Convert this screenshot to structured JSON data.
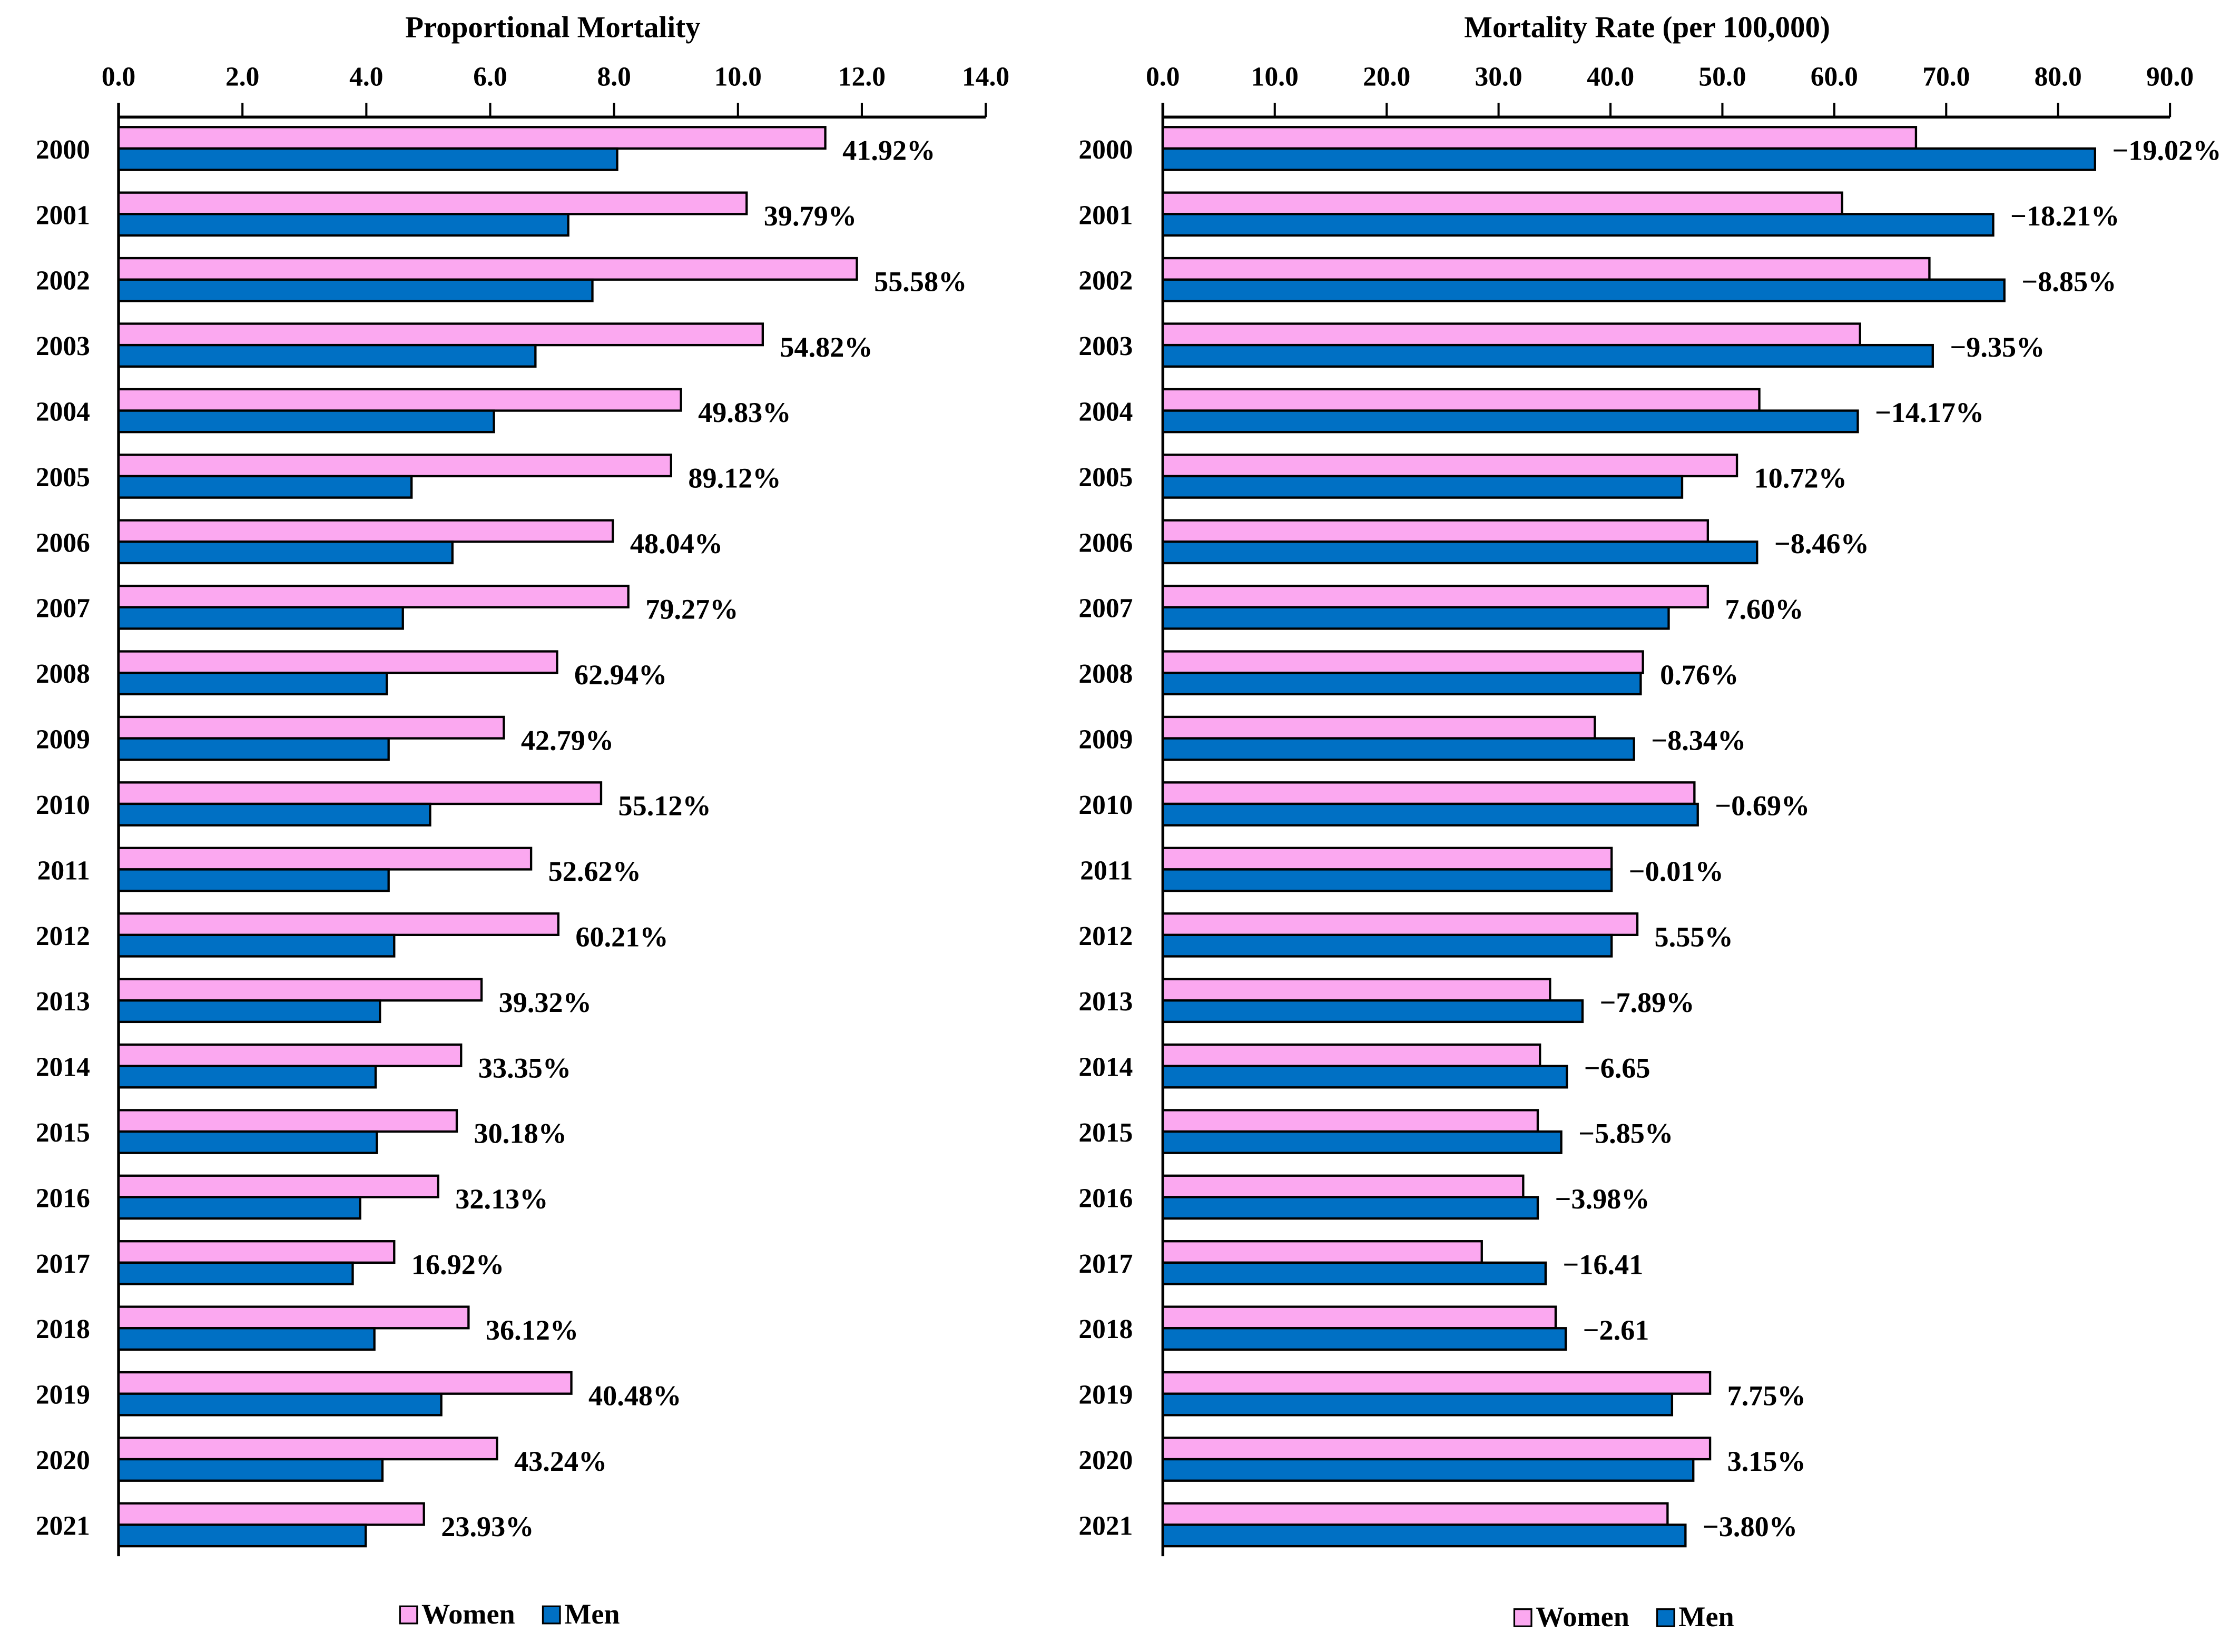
{
  "chart_data": [
    {
      "type": "bar",
      "orientation": "horizontal",
      "title": "Proportional Mortality",
      "xlim": [
        0,
        14
      ],
      "ticks": [
        "0.0",
        "2.0",
        "4.0",
        "6.0",
        "8.0",
        "10.0",
        "12.0",
        "14.0"
      ],
      "categories": [
        "2000",
        "2001",
        "2002",
        "2003",
        "2004",
        "2005",
        "2006",
        "2007",
        "2008",
        "2009",
        "2010",
        "2011",
        "2012",
        "2013",
        "2014",
        "2015",
        "2016",
        "2017",
        "2018",
        "2019",
        "2020",
        "2021"
      ],
      "series": [
        {
          "name": "Women",
          "color": "#fba8f0",
          "values": [
            11.41,
            10.14,
            11.92,
            10.4,
            9.08,
            8.92,
            7.98,
            8.23,
            7.08,
            6.22,
            7.79,
            6.66,
            7.1,
            5.86,
            5.53,
            5.46,
            5.16,
            4.45,
            5.65,
            7.31,
            6.11,
            4.93
          ]
        },
        {
          "name": "Men",
          "color": "#0070c4",
          "values": [
            8.05,
            7.26,
            7.65,
            6.73,
            6.06,
            4.73,
            5.39,
            4.59,
            4.33,
            4.36,
            5.03,
            4.36,
            4.45,
            4.22,
            4.15,
            4.17,
            3.9,
            3.78,
            4.13,
            5.21,
            4.26,
            3.99
          ]
        }
      ],
      "data_labels": [
        "41.92%",
        "39.79%",
        "55.58%",
        "54.82%",
        "49.83%",
        "89.12%",
        "48.04%",
        "79.27%",
        "62.94%",
        "42.79%",
        "55.12%",
        "52.62%",
        "60.21%",
        "39.32%",
        "33.35%",
        "30.18%",
        "32.13%",
        "16.92%",
        "36.12%",
        "40.48%",
        "43.24%",
        "23.93%"
      ],
      "legend": [
        "Women",
        "Men"
      ],
      "legend_position": "bottom",
      "grid": false
    },
    {
      "type": "bar",
      "orientation": "horizontal",
      "title": "Mortality Rate (per 100,000)",
      "xlim": [
        0,
        90
      ],
      "ticks": [
        "0.0",
        "10.0",
        "20.0",
        "30.0",
        "40.0",
        "50.0",
        "60.0",
        "70.0",
        "80.0",
        "90.0"
      ],
      "categories": [
        "2000",
        "2001",
        "2002",
        "2003",
        "2004",
        "2005",
        "2006",
        "2007",
        "2008",
        "2009",
        "2010",
        "2011",
        "2012",
        "2013",
        "2014",
        "2015",
        "2016",
        "2017",
        "2018",
        "2019",
        "2020",
        "2021"
      ],
      "series": [
        {
          "name": "Women",
          "color": "#fba8f0",
          "values": [
            67.3,
            60.7,
            68.5,
            62.3,
            53.3,
            51.3,
            48.7,
            48.7,
            42.9,
            38.6,
            47.5,
            40.1,
            42.4,
            34.6,
            33.7,
            33.5,
            32.2,
            28.5,
            35.1,
            48.9,
            48.9,
            45.1
          ]
        },
        {
          "name": "Men",
          "color": "#0070c4",
          "values": [
            83.3,
            74.2,
            75.2,
            68.8,
            62.1,
            46.4,
            53.1,
            45.2,
            42.7,
            42.1,
            47.8,
            40.1,
            40.1,
            37.5,
            36.1,
            35.6,
            33.5,
            34.2,
            36.0,
            45.5,
            47.4,
            46.7
          ]
        }
      ],
      "data_labels": [
        "−19.02%",
        "−18.21%",
        "−8.85%",
        "−9.35%",
        "−14.17%",
        "10.72%",
        "−8.46%",
        "7.60%",
        "0.76%",
        "−8.34%",
        "−0.69%",
        "−0.01%",
        "5.55%",
        "−7.89%",
        "−6.65",
        "−5.85%",
        "−3.98%",
        "−16.41",
        "−2.61",
        "7.75%",
        "3.15%",
        "−3.80%"
      ],
      "legend": [
        "Women",
        "Men"
      ],
      "legend_position": "bottom",
      "grid": false
    }
  ]
}
